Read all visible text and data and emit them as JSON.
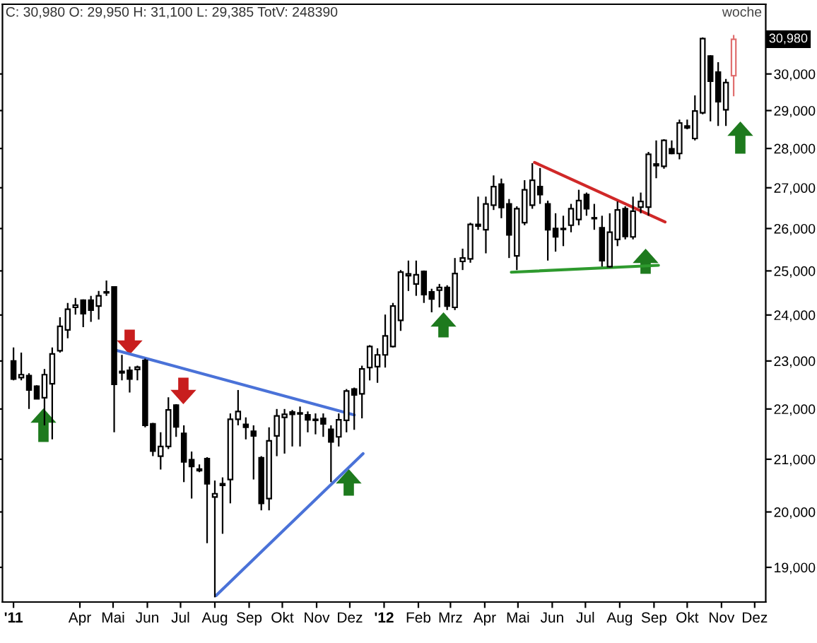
{
  "chart_data": {
    "type": "candlestick",
    "title": "C: 30,980 O: 29,950 H: 31,100 L: 29,385 TotV: 248390",
    "x": [
      "2011-01-31",
      "2011-02-07",
      "2011-02-14",
      "2011-02-21",
      "2011-02-28",
      "2011-03-07",
      "2011-03-14",
      "2011-03-21",
      "2011-03-28",
      "2011-04-04",
      "2011-04-11",
      "2011-04-18",
      "2011-04-25",
      "2011-05-02",
      "2011-05-09",
      "2011-05-16",
      "2011-05-23",
      "2011-05-30",
      "2011-06-06",
      "2011-06-13",
      "2011-06-20",
      "2011-06-27",
      "2011-07-04",
      "2011-07-11",
      "2011-07-18",
      "2011-07-25",
      "2011-08-01",
      "2011-08-08",
      "2011-08-15",
      "2011-08-22",
      "2011-08-29",
      "2011-09-05",
      "2011-09-12",
      "2011-09-19",
      "2011-09-26",
      "2011-10-03",
      "2011-10-10",
      "2011-10-17",
      "2011-10-24",
      "2011-10-31",
      "2011-11-07",
      "2011-11-14",
      "2011-11-21",
      "2011-11-28",
      "2011-12-05",
      "2011-12-12",
      "2011-12-19",
      "2011-12-26",
      "2012-01-02",
      "2012-01-09",
      "2012-01-16",
      "2012-01-23",
      "2012-01-30",
      "2012-02-06",
      "2012-02-13",
      "2012-02-20",
      "2012-02-27",
      "2012-03-05",
      "2012-03-12",
      "2012-03-19",
      "2012-03-26",
      "2012-04-02",
      "2012-04-09",
      "2012-04-16",
      "2012-04-23",
      "2012-04-30",
      "2012-05-07",
      "2012-05-14",
      "2012-05-21",
      "2012-05-28",
      "2012-06-04",
      "2012-06-11",
      "2012-06-18",
      "2012-06-25",
      "2012-07-02",
      "2012-07-09",
      "2012-07-16",
      "2012-07-23",
      "2012-07-30",
      "2012-08-06",
      "2012-08-13",
      "2012-08-20",
      "2012-08-27",
      "2012-09-03",
      "2012-09-10",
      "2012-09-17",
      "2012-09-24",
      "2012-10-01",
      "2012-10-08",
      "2012-10-15",
      "2012-10-22",
      "2012-10-29",
      "2012-11-05",
      "2012-11-12"
    ],
    "ohlc": [
      [
        23000,
        23290,
        22590,
        22620
      ],
      [
        22650,
        23180,
        22590,
        22710
      ],
      [
        22690,
        22740,
        22000,
        22390
      ],
      [
        22470,
        22490,
        22200,
        22210
      ],
      [
        22230,
        22830,
        21670,
        22710
      ],
      [
        22520,
        23290,
        21390,
        23150
      ],
      [
        23220,
        23950,
        23180,
        23750
      ],
      [
        23670,
        24270,
        23490,
        24130
      ],
      [
        24170,
        24380,
        24010,
        24220
      ],
      [
        24330,
        24350,
        23730,
        24030
      ],
      [
        24330,
        24430,
        23850,
        24110
      ],
      [
        24200,
        24540,
        23900,
        24430
      ],
      [
        24500,
        24780,
        24430,
        24520
      ],
      [
        24630,
        24650,
        21530,
        22510
      ],
      [
        22780,
        23130,
        22590,
        22750
      ],
      [
        22800,
        22880,
        22340,
        22620
      ],
      [
        22820,
        22900,
        22590,
        22870
      ],
      [
        23010,
        23050,
        21630,
        21670
      ],
      [
        21700,
        21720,
        21060,
        21160
      ],
      [
        21060,
        21530,
        20800,
        21250
      ],
      [
        21250,
        22240,
        21200,
        21980
      ],
      [
        22080,
        22100,
        21440,
        21640
      ],
      [
        21510,
        21670,
        20560,
        20950
      ],
      [
        20990,
        21150,
        20250,
        20860
      ],
      [
        20810,
        20900,
        20750,
        20780
      ],
      [
        21010,
        21040,
        19430,
        20530
      ],
      [
        20280,
        20590,
        18480,
        20340
      ],
      [
        20500,
        20650,
        19600,
        20530
      ],
      [
        20610,
        21910,
        20160,
        21790
      ],
      [
        21790,
        22390,
        21670,
        21950
      ],
      [
        21690,
        21830,
        21390,
        21630
      ],
      [
        21550,
        21670,
        20610,
        21460
      ],
      [
        21030,
        21060,
        20030,
        20160
      ],
      [
        20250,
        21630,
        20030,
        21360
      ],
      [
        21460,
        22000,
        21060,
        21860
      ],
      [
        21830,
        22000,
        21110,
        21890
      ],
      [
        21940,
        21980,
        21250,
        21890
      ],
      [
        21900,
        22050,
        21250,
        21920
      ],
      [
        21880,
        21950,
        21530,
        21780
      ],
      [
        21770,
        21910,
        21490,
        21790
      ],
      [
        21810,
        21910,
        21440,
        21700
      ],
      [
        21590,
        21670,
        20560,
        21340
      ],
      [
        21440,
        21910,
        21250,
        21780
      ],
      [
        21770,
        22410,
        21530,
        22370
      ],
      [
        22410,
        22440,
        21580,
        22290
      ],
      [
        22310,
        22900,
        21810,
        22830
      ],
      [
        22860,
        23340,
        22590,
        23310
      ],
      [
        22880,
        23270,
        22540,
        23130
      ],
      [
        23130,
        24010,
        22860,
        23540
      ],
      [
        23310,
        24270,
        23290,
        24200
      ],
      [
        23880,
        25020,
        23650,
        24970
      ],
      [
        24890,
        25240,
        24540,
        24930
      ],
      [
        24700,
        25240,
        24430,
        24910
      ],
      [
        24990,
        25010,
        24270,
        24460
      ],
      [
        24520,
        24590,
        24060,
        24360
      ],
      [
        24560,
        24700,
        24170,
        24620
      ],
      [
        24620,
        24670,
        24110,
        24200
      ],
      [
        24170,
        25300,
        24110,
        24940
      ],
      [
        25220,
        25520,
        25020,
        25300
      ],
      [
        25280,
        26140,
        25190,
        26100
      ],
      [
        26060,
        26780,
        25970,
        26100
      ],
      [
        25970,
        26780,
        25410,
        26600
      ],
      [
        26570,
        27310,
        26450,
        27030
      ],
      [
        27090,
        27230,
        26250,
        26510
      ],
      [
        26600,
        26720,
        25300,
        25850
      ],
      [
        25350,
        26540,
        25020,
        26480
      ],
      [
        26140,
        27190,
        26080,
        26950
      ],
      [
        26570,
        27620,
        26480,
        27190
      ],
      [
        27030,
        27500,
        26600,
        26830
      ],
      [
        26600,
        26680,
        25240,
        25970
      ],
      [
        26000,
        26370,
        25450,
        25800
      ],
      [
        25980,
        26310,
        25580,
        26000
      ],
      [
        26080,
        26600,
        25910,
        26480
      ],
      [
        26220,
        26950,
        26080,
        26680
      ],
      [
        26830,
        26880,
        26310,
        26480
      ],
      [
        26240,
        26600,
        25970,
        26260
      ],
      [
        26020,
        26310,
        25100,
        25240
      ],
      [
        25100,
        26370,
        25080,
        25910
      ],
      [
        25740,
        26660,
        25580,
        26450
      ],
      [
        26480,
        26540,
        25740,
        25810
      ],
      [
        25800,
        26780,
        25740,
        26420
      ],
      [
        26520,
        26880,
        26370,
        26660
      ],
      [
        26520,
        27910,
        26310,
        27850
      ],
      [
        27560,
        28210,
        27240,
        27600
      ],
      [
        27540,
        28240,
        27480,
        28210
      ],
      [
        27990,
        28210,
        27850,
        27870
      ],
      [
        27870,
        28760,
        27720,
        28670
      ],
      [
        28590,
        28760,
        28500,
        28540
      ],
      [
        28260,
        29410,
        28210,
        28990
      ],
      [
        28940,
        31030,
        28900,
        31000
      ],
      [
        30500,
        30530,
        28710,
        29800
      ],
      [
        30050,
        30330,
        28590,
        29240
      ],
      [
        29020,
        29860,
        28590,
        29760
      ],
      [
        29950,
        31100,
        29385,
        30980
      ]
    ],
    "colors": [
      "#000000",
      "#000000",
      "#000000",
      "#000000",
      "#000000",
      "#000000",
      "#000000",
      "#000000",
      "#000000",
      "#000000",
      "#000000",
      "#000000",
      "#000000",
      "#000000",
      "#000000",
      "#000000",
      "#000000",
      "#000000",
      "#000000",
      "#000000",
      "#000000",
      "#000000",
      "#000000",
      "#000000",
      "#000000",
      "#000000",
      "#000000",
      "#000000",
      "#000000",
      "#000000",
      "#000000",
      "#000000",
      "#000000",
      "#000000",
      "#000000",
      "#000000",
      "#000000",
      "#000000",
      "#000000",
      "#000000",
      "#000000",
      "#000000",
      "#000000",
      "#000000",
      "#000000",
      "#000000",
      "#000000",
      "#000000",
      "#000000",
      "#000000",
      "#000000",
      "#000000",
      "#000000",
      "#000000",
      "#000000",
      "#000000",
      "#000000",
      "#000000",
      "#000000",
      "#000000",
      "#000000",
      "#000000",
      "#000000",
      "#000000",
      "#000000",
      "#000000",
      "#000000",
      "#000000",
      "#000000",
      "#000000",
      "#000000",
      "#000000",
      "#000000",
      "#000000",
      "#000000",
      "#000000",
      "#000000",
      "#000000",
      "#000000",
      "#000000",
      "#000000",
      "#000000",
      "#000000",
      "#000000",
      "#000000",
      "#000000",
      "#000000",
      "#000000",
      "#000000",
      "#000000",
      "#000000",
      "#000000",
      "#000000",
      "#e07070"
    ],
    "series": [
      {
        "type": "line",
        "color": "#4a72d8",
        "x": [
          "2011-05-02",
          "2011-12-05"
        ],
        "values": [
          23240,
          21880
        ]
      },
      {
        "type": "line",
        "color": "#4a72d8",
        "x": [
          "2011-08-02",
          "2011-12-13"
        ],
        "values": [
          18510,
          21110
        ]
      },
      {
        "type": "line",
        "color": "#d02828",
        "x": [
          "2012-05-16",
          "2012-09-11"
        ],
        "values": [
          27640,
          26160
        ]
      },
      {
        "type": "line",
        "color": "#2e9a2e",
        "x": [
          "2012-04-25",
          "2012-09-05"
        ],
        "values": [
          24970,
          25130
        ]
      }
    ],
    "log": "y",
    "xlim": [
      "2011-01-21",
      "2012-12-11"
    ],
    "xticks": [
      {
        "value": "2011-01-31",
        "label": "'11"
      },
      {
        "value": "2011-04-01",
        "label": "Apr"
      },
      {
        "value": "2011-05-01",
        "label": "Mai"
      },
      {
        "value": "2011-06-01",
        "label": "Jun"
      },
      {
        "value": "2011-07-01",
        "label": "Jul"
      },
      {
        "value": "2011-08-01",
        "label": "Aug"
      },
      {
        "value": "2011-09-01",
        "label": "Sep"
      },
      {
        "value": "2011-10-01",
        "label": "Okt"
      },
      {
        "value": "2011-11-01",
        "label": "Nov"
      },
      {
        "value": "2011-12-01",
        "label": "Dez"
      },
      {
        "value": "2012-01-01",
        "label": "'12"
      },
      {
        "value": "2012-02-01",
        "label": "Feb"
      },
      {
        "value": "2012-03-01",
        "label": "Mrz"
      },
      {
        "value": "2012-04-01",
        "label": "Apr"
      },
      {
        "value": "2012-05-01",
        "label": "Mai"
      },
      {
        "value": "2012-06-01",
        "label": "Jun"
      },
      {
        "value": "2012-07-01",
        "label": "Jul"
      },
      {
        "value": "2012-08-01",
        "label": "Aug"
      },
      {
        "value": "2012-09-01",
        "label": "Sep"
      },
      {
        "value": "2012-10-01",
        "label": "Okt"
      },
      {
        "value": "2012-11-01",
        "label": "Nov"
      },
      {
        "value": "2012-12-01",
        "label": "Dez"
      }
    ],
    "ylim": [
      18400,
      32000
    ],
    "yticks": [
      {
        "value": 19000,
        "label": "19,000"
      },
      {
        "value": 20000,
        "label": "20,000"
      },
      {
        "value": 21000,
        "label": "21,000"
      },
      {
        "value": 22000,
        "label": "22,000"
      },
      {
        "value": 23000,
        "label": "23,000"
      },
      {
        "value": 24000,
        "label": "24,000"
      },
      {
        "value": 25000,
        "label": "25,000"
      },
      {
        "value": 26000,
        "label": "26,000"
      },
      {
        "value": 27000,
        "label": "27,000"
      },
      {
        "value": 28000,
        "label": "28,000"
      },
      {
        "value": 29000,
        "label": "29,000"
      },
      {
        "value": 30000,
        "label": "30,000"
      }
    ],
    "annotations": [
      "woche",
      {
        "text": "30,980",
        "x": "2012-11-12",
        "y": 30980
      }
    ]
  }
}
